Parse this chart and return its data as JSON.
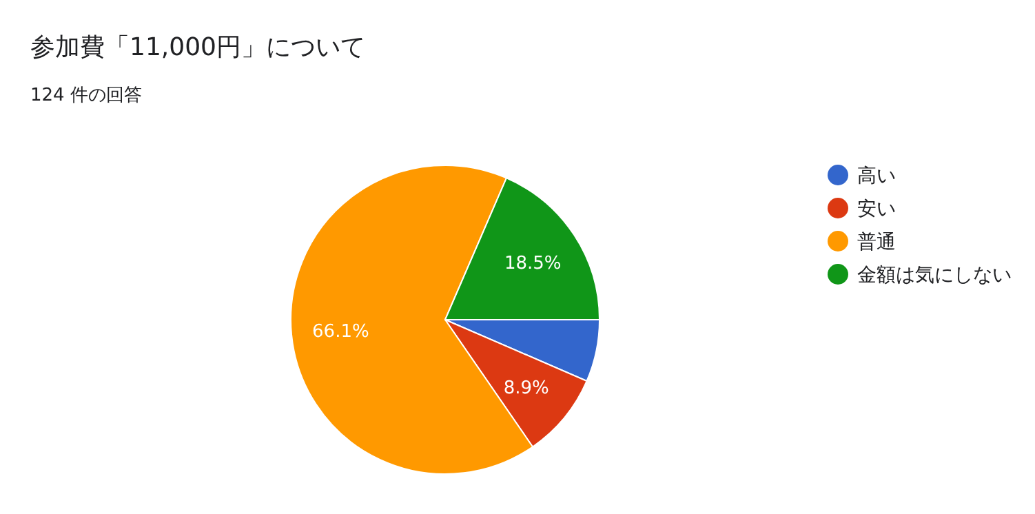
{
  "chart_data": {
    "type": "pie",
    "title": "参加費「11,000円」について",
    "subtitle": "124 件の回答",
    "categories": [
      "高い",
      "安い",
      "普通",
      "金額は気にしない"
    ],
    "values": [
      6.5,
      8.9,
      66.1,
      18.5
    ],
    "value_labels": [
      null,
      "8.9%",
      "66.1%",
      "18.5%"
    ],
    "colors": [
      "#3366cc",
      "#dc3912",
      "#ff9900",
      "#109618"
    ],
    "legend": "right"
  }
}
